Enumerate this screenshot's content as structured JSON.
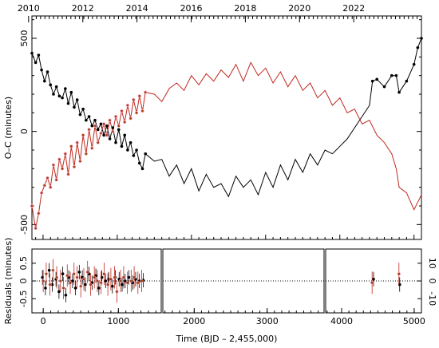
{
  "chart_data": [
    {
      "type": "line",
      "panel": "main",
      "title": "",
      "xlabel": "",
      "ylabel": "O–C (minutes)",
      "xlim": [
        -150,
        5100
      ],
      "ylim": [
        -580,
        620
      ],
      "grid": false,
      "yticks": [
        -500,
        0,
        500
      ],
      "x_major_ticks": [
        0,
        1000,
        2000,
        3000,
        4000,
        5000
      ],
      "top_axis": {
        "labels": [
          "2010",
          "2012",
          "2014",
          "2016",
          "2018",
          "2020",
          "2022"
        ],
        "values": [
          2010,
          2012,
          2014,
          2016,
          2018,
          2020,
          2022
        ],
        "unit_offset_x": [
          -195,
          536,
          1266,
          1997,
          2727,
          3457,
          4188
        ]
      },
      "series": [
        {
          "name": "",
          "color": "#000000",
          "x": [
            -150,
            -100,
            -60,
            -20,
            20,
            60,
            100,
            140,
            180,
            220,
            260,
            300,
            340,
            380,
            420,
            460,
            500,
            540,
            580,
            620,
            660,
            700,
            740,
            780,
            820,
            860,
            900,
            940,
            980,
            1020,
            1060,
            1100,
            1140,
            1180,
            1220,
            1260,
            1300,
            1340,
            1380,
            1500,
            1600,
            1700,
            1800,
            1900,
            2000,
            2100,
            2200,
            2300,
            2400,
            2500,
            2600,
            2700,
            2800,
            2900,
            3000,
            3100,
            3200,
            3300,
            3400,
            3500,
            3600,
            3700,
            3800,
            3900,
            4000,
            4100,
            4200,
            4300,
            4400,
            4440,
            4500,
            4600,
            4700,
            4760,
            4800,
            4900,
            5000,
            5050,
            5100
          ],
          "y": [
            420,
            370,
            410,
            330,
            270,
            320,
            250,
            200,
            240,
            190,
            180,
            230,
            150,
            210,
            130,
            170,
            90,
            120,
            60,
            80,
            30,
            60,
            10,
            40,
            -20,
            30,
            -40,
            20,
            -60,
            10,
            -80,
            -20,
            -100,
            -60,
            -130,
            -100,
            -170,
            -200,
            -120,
            -160,
            -150,
            -240,
            -180,
            -280,
            -200,
            -320,
            -230,
            -300,
            -280,
            -350,
            -240,
            -300,
            -260,
            -340,
            -220,
            -300,
            -180,
            -260,
            -150,
            -220,
            -120,
            -180,
            -100,
            -120,
            -80,
            -40,
            20,
            80,
            140,
            270,
            280,
            240,
            300,
            300,
            210,
            270,
            360,
            450,
            500
          ]
        },
        {
          "name": "",
          "color": "#c0281e",
          "x": [
            -150,
            -100,
            -60,
            -20,
            20,
            60,
            100,
            140,
            180,
            220,
            260,
            300,
            340,
            380,
            420,
            460,
            500,
            540,
            580,
            620,
            660,
            700,
            740,
            780,
            820,
            860,
            900,
            940,
            980,
            1020,
            1060,
            1100,
            1140,
            1180,
            1220,
            1260,
            1300,
            1340,
            1380,
            1500,
            1600,
            1700,
            1800,
            1900,
            2000,
            2100,
            2200,
            2300,
            2400,
            2500,
            2600,
            2700,
            2800,
            2900,
            3000,
            3100,
            3200,
            3300,
            3400,
            3500,
            3600,
            3700,
            3800,
            3900,
            4000,
            4100,
            4200,
            4300,
            4400,
            4500,
            4600,
            4700,
            4760,
            4800,
            4900,
            5000,
            5050,
            5100
          ],
          "y": [
            -400,
            -520,
            -440,
            -330,
            -290,
            -250,
            -300,
            -180,
            -260,
            -150,
            -200,
            -120,
            -230,
            -80,
            -190,
            -60,
            -160,
            -20,
            -120,
            10,
            -90,
            30,
            -60,
            -10,
            40,
            -20,
            60,
            0,
            80,
            30,
            110,
            50,
            140,
            70,
            170,
            100,
            190,
            110,
            210,
            200,
            160,
            230,
            260,
            220,
            300,
            250,
            310,
            270,
            330,
            290,
            360,
            270,
            370,
            300,
            340,
            260,
            320,
            240,
            300,
            220,
            260,
            180,
            220,
            140,
            180,
            100,
            120,
            40,
            60,
            -20,
            -60,
            -120,
            -200,
            -300,
            -330,
            -420,
            -380,
            -340
          ]
        }
      ]
    },
    {
      "type": "scatter",
      "panel": "residuals",
      "title": "",
      "xlabel": "Time (BJD – 2,455,000)",
      "ylabel": "Residuals (minutes)",
      "xlim": [
        -150,
        5100
      ],
      "ylim": [
        -0.9,
        0.9
      ],
      "yticks_left": [
        -0.5,
        0,
        0.5
      ],
      "yticks_left_labels": [
        "-0.5",
        "0",
        "0.5"
      ],
      "yticks_right": [
        -10,
        0,
        10
      ],
      "yticks_right_labels": [
        "-10",
        "0",
        "10"
      ],
      "x_major_ticks": [
        0,
        1000,
        2000,
        3000,
        4000,
        5000
      ],
      "x_tick_labels": [
        "0",
        "1000",
        "2000",
        "3000",
        "4000",
        "5000"
      ],
      "broken_axis_at": [
        1570,
        3780
      ],
      "reference_line": 0,
      "series": [
        {
          "name": "",
          "color": "#000000",
          "x": [
            -10,
            30,
            80,
            120,
            170,
            210,
            260,
            300,
            340,
            390,
            430,
            480,
            520,
            560,
            610,
            650,
            700,
            740,
            780,
            830,
            870,
            920,
            960,
            1010,
            1050,
            1090,
            1140,
            1190,
            1230,
            1280,
            1330,
            4440,
            4800
          ],
          "y": [
            0.1,
            -0.2,
            0.3,
            -0.1,
            0.05,
            -0.3,
            0.2,
            -0.4,
            0.1,
            0.0,
            -0.2,
            0.25,
            0.1,
            -0.1,
            0.2,
            -0.05,
            0.15,
            -0.2,
            0.1,
            0.0,
            0.05,
            -0.15,
            0.1,
            0.05,
            -0.1,
            0.0,
            0.1,
            -0.05,
            0.05,
            0.0,
            0.02,
            0.05,
            -0.1
          ]
        },
        {
          "name": "",
          "color": "#c0281e",
          "x": [
            0,
            40,
            90,
            130,
            180,
            230,
            270,
            320,
            360,
            410,
            450,
            500,
            540,
            590,
            630,
            680,
            720,
            770,
            810,
            860,
            900,
            950,
            980,
            1030,
            1070,
            1120,
            1170,
            1210,
            1260,
            1310,
            4420,
            4790
          ],
          "y": [
            0.0,
            0.2,
            -0.1,
            0.3,
            0.1,
            0.0,
            -0.2,
            0.15,
            -0.05,
            0.2,
            0.1,
            -0.15,
            0.05,
            0.25,
            -0.1,
            0.1,
            0.0,
            -0.05,
            0.2,
            -0.1,
            0.05,
            0.1,
            -0.3,
            0.0,
            0.1,
            -0.05,
            0.0,
            0.1,
            -0.05,
            0.0,
            -0.05,
            0.2
          ]
        }
      ]
    }
  ]
}
